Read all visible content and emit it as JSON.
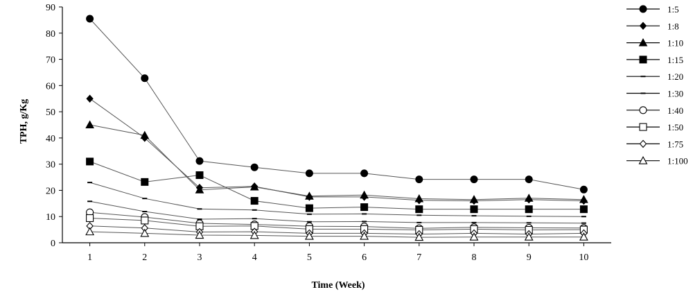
{
  "chart_data": {
    "type": "line",
    "xlabel": "Time (Week)",
    "ylabel": "TPH, g/Kg",
    "x": [
      1,
      2,
      3,
      4,
      5,
      6,
      7,
      8,
      9,
      10
    ],
    "xlim": [
      0.5,
      10.5
    ],
    "ylim": [
      0,
      90
    ],
    "yticks": [
      0,
      10,
      20,
      30,
      40,
      50,
      60,
      70,
      80,
      90
    ],
    "grid": false,
    "legend_position": "right",
    "series": [
      {
        "name": "1:5",
        "marker": "filled-circle",
        "values": [
          85.5,
          62.8,
          31.2,
          28.8,
          26.5,
          26.5,
          24.2,
          24.2,
          24.2,
          20.3
        ]
      },
      {
        "name": "1:8",
        "marker": "filled-diamond",
        "values": [
          55,
          40,
          21,
          21.5,
          17.5,
          17.5,
          16.2,
          16,
          16.5,
          16
        ]
      },
      {
        "name": "1:10",
        "marker": "filled-triangle",
        "values": [
          45,
          41,
          20.2,
          21.3,
          17.8,
          18.2,
          16.8,
          16.5,
          17,
          16.5
        ]
      },
      {
        "name": "1:15",
        "marker": "filled-square",
        "values": [
          31,
          23.2,
          25.8,
          16,
          13.2,
          13.6,
          12.8,
          12.8,
          12.8,
          12.8
        ]
      },
      {
        "name": "1:20",
        "marker": "dash",
        "values": [
          23,
          16.9,
          12.9,
          12.5,
          10.9,
          11,
          10.5,
          10.3,
          10.1,
          10
        ]
      },
      {
        "name": "1:30",
        "marker": "dash",
        "values": [
          15.8,
          11.9,
          9,
          9.2,
          8,
          8.1,
          7.7,
          7.7,
          7.6,
          7.5
        ]
      },
      {
        "name": "1:40",
        "marker": "open-circle",
        "values": [
          11.6,
          9.8,
          7.4,
          7,
          6.3,
          6.2,
          5.5,
          5.9,
          5.7,
          5.6
        ]
      },
      {
        "name": "1:50",
        "marker": "open-square",
        "values": [
          9.4,
          8.5,
          6.3,
          6.4,
          5.2,
          5.2,
          4.9,
          5.2,
          4.9,
          5
        ]
      },
      {
        "name": "1:75",
        "marker": "open-diamond",
        "values": [
          6.4,
          5.6,
          4.1,
          4.2,
          3.6,
          3.6,
          3.3,
          3.6,
          3.3,
          3.6
        ]
      },
      {
        "name": "1:100",
        "marker": "open-triangle",
        "values": [
          4.2,
          3.6,
          2.9,
          2.8,
          2.5,
          2.5,
          2.1,
          2.2,
          2.2,
          2.2
        ]
      }
    ]
  }
}
